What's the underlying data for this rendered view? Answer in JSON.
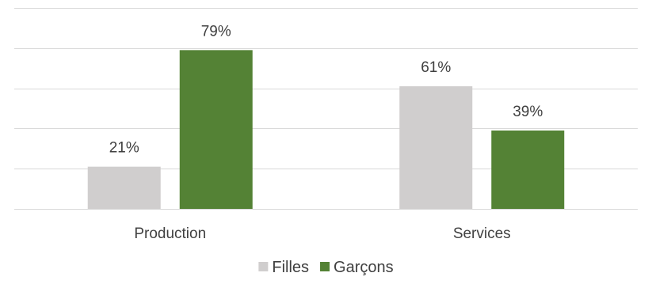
{
  "chart_data": {
    "type": "bar",
    "categories": [
      "Production",
      "Services"
    ],
    "series": [
      {
        "name": "Filles",
        "values": [
          21,
          61
        ],
        "color": "#d0cece"
      },
      {
        "name": "Garçons",
        "values": [
          79,
          39
        ],
        "color": "#548235"
      }
    ],
    "value_suffix": "%",
    "ylim": [
      0,
      100
    ],
    "grid": true,
    "y_tick_labels_shown": false,
    "legend_position": "bottom-center",
    "gridline_color": "#d9d9d9",
    "label_color": "#404040"
  }
}
